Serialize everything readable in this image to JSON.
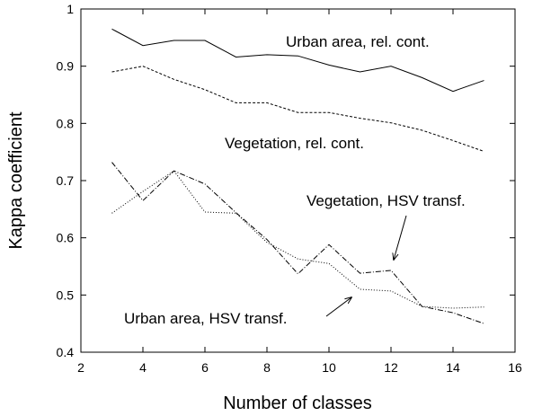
{
  "chart_data": {
    "type": "line",
    "title": "",
    "xlabel": "Number of classes",
    "ylabel": "Kappa coefficient",
    "xlim": [
      2,
      16
    ],
    "ylim": [
      0.4,
      1
    ],
    "xticks": [
      "2",
      "4",
      "6",
      "8",
      "10",
      "12",
      "14",
      "16"
    ],
    "yticks": [
      "0.4",
      "0.5",
      "0.6",
      "0.7",
      "0.8",
      "0.9",
      "1"
    ],
    "grid": false,
    "x": [
      3,
      4,
      5,
      6,
      7,
      8,
      9,
      10,
      11,
      12,
      13,
      14,
      15
    ],
    "series": [
      {
        "name": "Urban area, rel. cont.",
        "style": "solid",
        "values": [
          0.965,
          0.936,
          0.945,
          0.945,
          0.916,
          0.92,
          0.918,
          0.902,
          0.89,
          0.9,
          0.88,
          0.856,
          0.875
        ]
      },
      {
        "name": "Vegetation, rel. cont.",
        "style": "dashed",
        "values": [
          0.89,
          0.9,
          0.877,
          0.859,
          0.836,
          0.836,
          0.819,
          0.819,
          0.809,
          0.801,
          0.788,
          0.77,
          0.751
        ]
      },
      {
        "name": "Vegetation, HSV transf.",
        "style": "dashdot",
        "values": [
          0.732,
          0.665,
          0.717,
          0.694,
          0.644,
          0.597,
          0.537,
          0.588,
          0.538,
          0.543,
          0.48,
          0.469,
          0.45
        ]
      },
      {
        "name": "Urban area, HSV transf.",
        "style": "dotted",
        "values": [
          0.643,
          0.681,
          0.717,
          0.645,
          0.643,
          0.592,
          0.563,
          0.555,
          0.51,
          0.507,
          0.48,
          0.477,
          0.479
        ]
      }
    ],
    "annotations": [
      {
        "text": "Urban area, rel. cont."
      },
      {
        "text": "Vegetation, rel. cont."
      },
      {
        "text": "Vegetation, HSV transf.",
        "arrow_to": [
          12,
          0.543
        ]
      },
      {
        "text": "Urban area, HSV transf.",
        "arrow_to": [
          11,
          0.51
        ]
      }
    ],
    "colors": {
      "line": "#000000",
      "background": "#ffffff"
    }
  }
}
